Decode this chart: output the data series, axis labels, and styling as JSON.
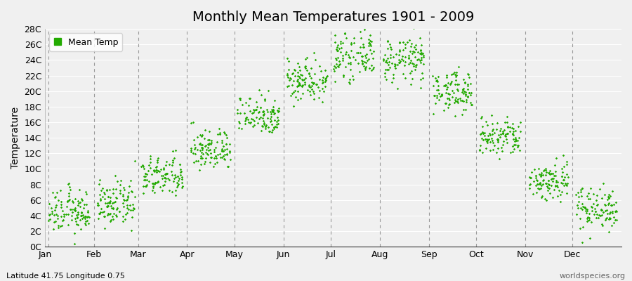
{
  "title": "Monthly Mean Temperatures 1901 - 2009",
  "ylabel": "Temperature",
  "xlabel_months": [
    "Jan",
    "Feb",
    "Mar",
    "Apr",
    "May",
    "Jun",
    "Jul",
    "Aug",
    "Sep",
    "Oct",
    "Nov",
    "Dec"
  ],
  "monthly_means": [
    4.5,
    5.5,
    9.0,
    12.5,
    17.0,
    21.5,
    24.5,
    24.0,
    20.0,
    14.0,
    8.5,
    5.0
  ],
  "monthly_stds": [
    1.4,
    1.4,
    1.3,
    1.3,
    1.3,
    1.4,
    1.4,
    1.4,
    1.3,
    1.3,
    1.3,
    1.4
  ],
  "n_years": 109,
  "ylim": [
    0,
    28
  ],
  "yticks": [
    0,
    2,
    4,
    6,
    8,
    10,
    12,
    14,
    16,
    18,
    20,
    22,
    24,
    26,
    28
  ],
  "ytick_labels": [
    "0C",
    "2C",
    "4C",
    "6C",
    "8C",
    "10C",
    "12C",
    "14C",
    "16C",
    "18C",
    "20C",
    "22C",
    "24C",
    "26C",
    "28C"
  ],
  "dot_color": "#22aa00",
  "dot_size": 3,
  "bg_color": "#f0f0f0",
  "plot_bg_color": "#f0f0f0",
  "grid_color": "#ffffff",
  "dashed_line_color": "#999999",
  "legend_label": "Mean Temp",
  "footer_left": "Latitude 41.75 Longitude 0.75",
  "footer_right": "worldspecies.org",
  "title_fontsize": 14,
  "axis_fontsize": 10,
  "tick_fontsize": 9,
  "footer_fontsize": 8
}
